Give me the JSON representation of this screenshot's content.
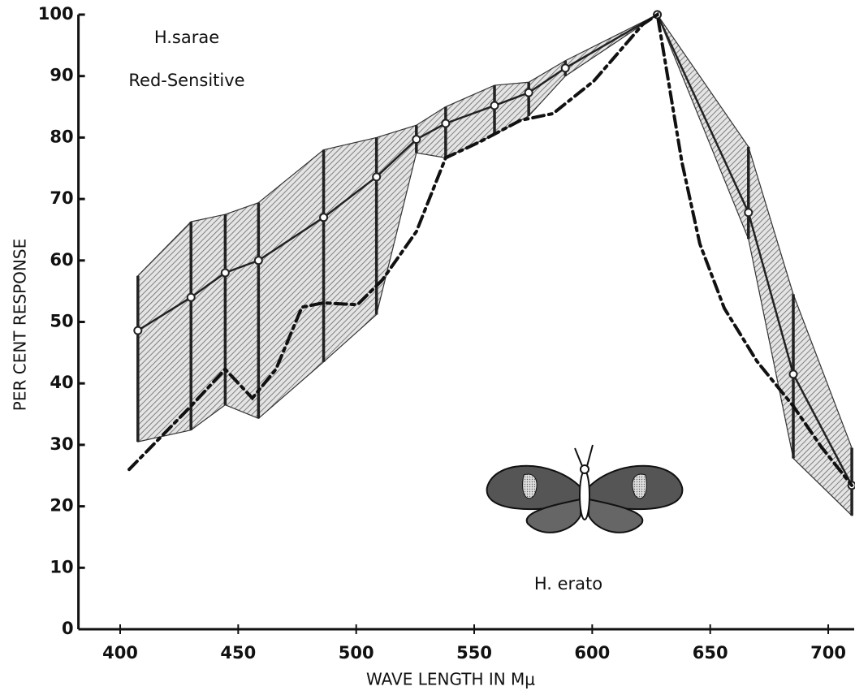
{
  "chart_data": {
    "type": "line",
    "x_label": "WAVE LENGTH IN Mμ",
    "y_label": "PER CENT RESPONSE",
    "annotations": [
      "H.sarae",
      "Red-Sensitive",
      "H. erato"
    ],
    "xlim": [
      383,
      711
    ],
    "ylim": [
      0,
      100
    ],
    "xticks": [
      400,
      450,
      500,
      550,
      600,
      650,
      700
    ],
    "yticks": [
      0,
      10,
      20,
      30,
      40,
      50,
      60,
      70,
      80,
      90,
      100
    ],
    "series": [
      {
        "style": "band",
        "color": "#222",
        "x": [
          407.5,
          430,
          444.5,
          458.6,
          486.2,
          508.6,
          525.5,
          537.9,
          558.6,
          573.1,
          588.6,
          627.6,
          666.2,
          685.2,
          710
        ],
        "values": [
          48.6,
          54,
          58,
          60,
          67,
          73.6,
          79.7,
          82.3,
          85.2,
          87.3,
          91.3,
          100,
          67.8,
          41.5,
          23.4
        ],
        "low": [
          30.5,
          32.4,
          36.5,
          34.3,
          43.5,
          51.2,
          77.5,
          76.7,
          80.5,
          83.5,
          90,
          100,
          63.5,
          27.8,
          18.5
        ],
        "high": [
          57.5,
          66.3,
          67.5,
          69.4,
          78,
          80,
          82,
          85,
          88.5,
          89,
          92.5,
          100,
          78.5,
          54.5,
          29.5
        ]
      },
      {
        "style": "dash-dot",
        "color": "#111",
        "x": [
          403.8,
          430,
          444.5,
          456,
          466,
          477,
          486,
          500.5,
          511,
          525.5,
          537.9,
          552.4,
          569.6,
          583.4,
          600.7,
          621.4,
          627.6,
          638,
          645.6,
          656,
          669.8,
          685.2,
          697,
          710
        ],
        "values": [
          26,
          36.3,
          42.3,
          37.6,
          42.3,
          52.4,
          53.1,
          52.8,
          56.8,
          64.7,
          76.7,
          79.3,
          82.8,
          83.9,
          89.2,
          98.4,
          100,
          76,
          62.7,
          52.2,
          43.6,
          36.3,
          29.7,
          23.4
        ]
      }
    ]
  }
}
